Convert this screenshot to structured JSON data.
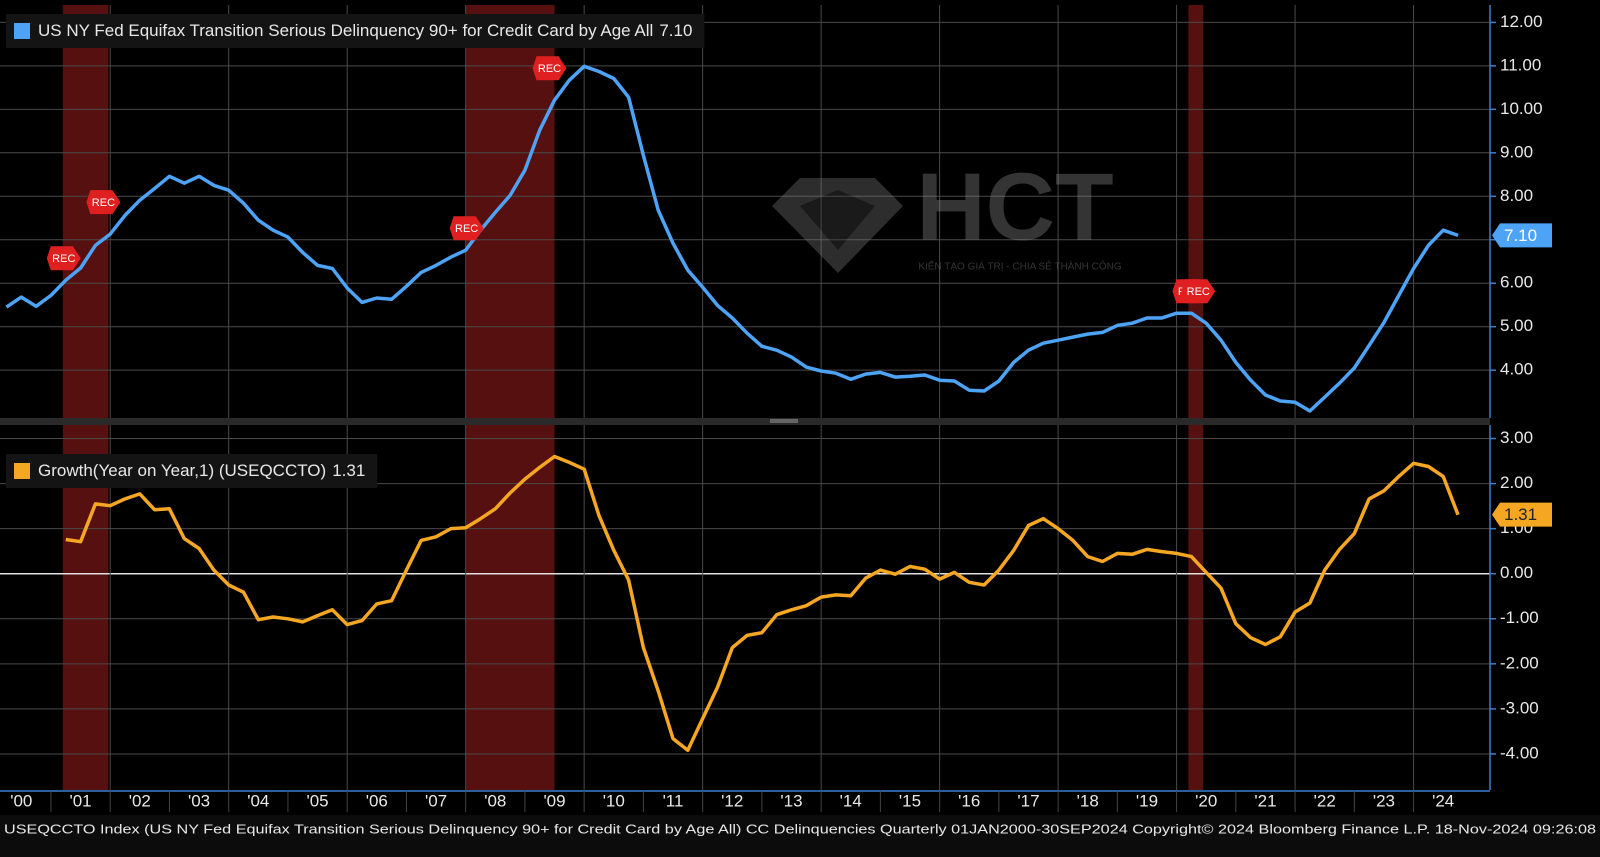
{
  "chart_data": [
    {
      "type": "line",
      "series": [
        {
          "name": "US NY Fed Equifax Transition Serious Delinquency 90+ for Credit Card by Age All",
          "last_value_label": "7.10",
          "color": "#4da3f5",
          "x": [
            2000.25,
            2000.5,
            2000.75,
            2001,
            2001.25,
            2001.5,
            2001.75,
            2002,
            2002.25,
            2002.5,
            2002.75,
            2003,
            2003.25,
            2003.5,
            2003.75,
            2004,
            2004.25,
            2004.5,
            2004.75,
            2005,
            2005.25,
            2005.5,
            2005.75,
            2006,
            2006.25,
            2006.5,
            2006.75,
            2007,
            2007.25,
            2007.5,
            2007.75,
            2008,
            2008.25,
            2008.5,
            2008.75,
            2009,
            2009.25,
            2009.5,
            2009.75,
            2010,
            2010.25,
            2010.5,
            2010.75,
            2011,
            2011.25,
            2011.5,
            2011.75,
            2012,
            2012.25,
            2012.5,
            2012.75,
            2013,
            2013.25,
            2013.5,
            2013.75,
            2014,
            2014.25,
            2014.5,
            2014.75,
            2015,
            2015.25,
            2015.5,
            2015.75,
            2016,
            2016.25,
            2016.5,
            2016.75,
            2017,
            2017.25,
            2017.5,
            2017.75,
            2018,
            2018.25,
            2018.5,
            2018.75,
            2019,
            2019.25,
            2019.5,
            2019.75,
            2020,
            2020.25,
            2020.5,
            2020.75,
            2021,
            2021.25,
            2021.5,
            2021.75,
            2022,
            2022.25,
            2022.5,
            2022.75,
            2023,
            2023.25,
            2023.5,
            2023.75,
            2024,
            2024.25,
            2024.5,
            2024.75
          ],
          "values": [
            5.45,
            5.68,
            5.47,
            5.72,
            6.07,
            6.35,
            6.87,
            7.13,
            7.56,
            7.91,
            8.18,
            8.46,
            8.3,
            8.46,
            8.25,
            8.14,
            7.84,
            7.45,
            7.22,
            7.06,
            6.71,
            6.41,
            6.34,
            5.89,
            5.56,
            5.66,
            5.63,
            5.93,
            6.25,
            6.41,
            6.6,
            6.76,
            7.22,
            7.63,
            8.02,
            8.6,
            9.52,
            10.21,
            10.67,
            10.99,
            10.87,
            10.71,
            10.28,
            8.94,
            7.68,
            6.92,
            6.3,
            5.91,
            5.49,
            5.2,
            4.85,
            4.55,
            4.46,
            4.3,
            4.07,
            3.98,
            3.93,
            3.79,
            3.91,
            3.95,
            3.84,
            3.86,
            3.89,
            3.77,
            3.75,
            3.54,
            3.52,
            3.75,
            4.18,
            4.46,
            4.62,
            4.69,
            4.76,
            4.83,
            4.87,
            5.03,
            5.08,
            5.2,
            5.2,
            5.31,
            5.31,
            5.08,
            4.69,
            4.18,
            3.77,
            3.43,
            3.29,
            3.26,
            3.06,
            3.38,
            3.7,
            4.05,
            4.57,
            5.1,
            5.72,
            6.34,
            6.87,
            7.22,
            7.1
          ]
        }
      ],
      "xlim": [
        2000.14,
        2025.29
      ],
      "ylim": [
        2.9,
        12.4
      ],
      "yticks": [
        {
          "value": 4,
          "label": "4.00"
        },
        {
          "value": 5,
          "label": "5.00"
        },
        {
          "value": 6,
          "label": "6.00"
        },
        {
          "value": 7,
          "label": "7.00"
        },
        {
          "value": 8,
          "label": "8.00"
        },
        {
          "value": 9,
          "label": "9.00"
        },
        {
          "value": 10,
          "label": "10.00"
        },
        {
          "value": 11,
          "label": "11.00"
        },
        {
          "value": 12,
          "label": "12.00"
        }
      ],
      "grid": true,
      "recessions": [
        [
          2001.2,
          2001.97
        ],
        [
          2008.0,
          2009.5
        ],
        [
          2020.2,
          2020.45
        ]
      ],
      "recession_label": "REC"
    },
    {
      "type": "line",
      "series": [
        {
          "name": "Growth(Year on Year,1) (USEQCCTO)",
          "last_value_label": "1.31",
          "color": "#f5a623",
          "x": [
            2001.25,
            2001.5,
            2001.75,
            2002,
            2002.25,
            2002.5,
            2002.75,
            2003,
            2003.25,
            2003.5,
            2003.75,
            2004,
            2004.25,
            2004.5,
            2004.75,
            2005,
            2005.25,
            2005.5,
            2005.75,
            2006,
            2006.25,
            2006.5,
            2006.75,
            2007,
            2007.25,
            2007.5,
            2007.75,
            2008,
            2008.25,
            2008.5,
            2008.75,
            2009,
            2009.25,
            2009.5,
            2009.75,
            2010,
            2010.25,
            2010.5,
            2010.75,
            2011,
            2011.25,
            2011.5,
            2011.75,
            2012,
            2012.25,
            2012.5,
            2012.75,
            2013,
            2013.25,
            2013.5,
            2013.75,
            2014,
            2014.25,
            2014.5,
            2014.75,
            2015,
            2015.25,
            2015.5,
            2015.75,
            2016,
            2016.25,
            2016.5,
            2016.75,
            2017,
            2017.25,
            2017.5,
            2017.75,
            2018,
            2018.25,
            2018.5,
            2018.75,
            2019,
            2019.25,
            2019.5,
            2019.75,
            2020,
            2020.25,
            2020.5,
            2020.75,
            2021,
            2021.25,
            2021.5,
            2021.75,
            2022,
            2022.25,
            2022.5,
            2022.75,
            2023,
            2023.25,
            2023.5,
            2023.75,
            2024,
            2024.25,
            2024.5,
            2024.75
          ],
          "values": [
            0.76,
            0.71,
            1.55,
            1.51,
            1.66,
            1.77,
            1.42,
            1.44,
            0.78,
            0.56,
            0.08,
            -0.25,
            -0.41,
            -1.02,
            -0.96,
            -1.0,
            -1.07,
            -0.93,
            -0.8,
            -1.13,
            -1.04,
            -0.67,
            -0.6,
            0.08,
            0.74,
            0.82,
            1.0,
            1.02,
            1.22,
            1.44,
            1.79,
            2.1,
            2.36,
            2.6,
            2.47,
            2.32,
            1.29,
            0.52,
            -0.14,
            -1.64,
            -2.6,
            -3.66,
            -3.92,
            -3.22,
            -2.52,
            -1.64,
            -1.37,
            -1.31,
            -0.91,
            -0.8,
            -0.71,
            -0.52,
            -0.47,
            -0.49,
            -0.1,
            0.08,
            -0.01,
            0.16,
            0.1,
            -0.12,
            0.03,
            -0.19,
            -0.25,
            0.08,
            0.52,
            1.07,
            1.22,
            1.0,
            0.74,
            0.38,
            0.27,
            0.45,
            0.43,
            0.54,
            0.49,
            0.45,
            0.38,
            0.03,
            -0.32,
            -1.11,
            -1.42,
            -1.57,
            -1.4,
            -0.85,
            -0.65,
            0.08,
            0.54,
            0.89,
            1.66,
            1.84,
            2.16,
            2.45,
            2.38,
            2.16,
            1.31
          ]
        }
      ],
      "xlim": [
        2000.14,
        2025.29
      ],
      "ylim": [
        -4.8,
        3.3
      ],
      "yticks": [
        {
          "value": -4,
          "label": "-4.00"
        },
        {
          "value": -3,
          "label": "-3.00"
        },
        {
          "value": -2,
          "label": "-2.00"
        },
        {
          "value": -1,
          "label": "-1.00"
        },
        {
          "value": 0,
          "label": "0.00"
        },
        {
          "value": 1,
          "label": "1.00"
        },
        {
          "value": 2,
          "label": "2.00"
        },
        {
          "value": 3,
          "label": "3.00"
        }
      ],
      "grid": true,
      "zero_line": true,
      "xticks": [
        {
          "value": 2000,
          "label": "'00"
        },
        {
          "value": 2001,
          "label": "'01"
        },
        {
          "value": 2002,
          "label": "'02"
        },
        {
          "value": 2003,
          "label": "'03"
        },
        {
          "value": 2004,
          "label": "'04"
        },
        {
          "value": 2005,
          "label": "'05"
        },
        {
          "value": 2006,
          "label": "'06"
        },
        {
          "value": 2007,
          "label": "'07"
        },
        {
          "value": 2008,
          "label": "'08"
        },
        {
          "value": 2009,
          "label": "'09"
        },
        {
          "value": 2010,
          "label": "'10"
        },
        {
          "value": 2011,
          "label": "'11"
        },
        {
          "value": 2012,
          "label": "'12"
        },
        {
          "value": 2013,
          "label": "'13"
        },
        {
          "value": 2014,
          "label": "'14"
        },
        {
          "value": 2015,
          "label": "'15"
        },
        {
          "value": 2016,
          "label": "'16"
        },
        {
          "value": 2017,
          "label": "'17"
        },
        {
          "value": 2018,
          "label": "'18"
        },
        {
          "value": 2019,
          "label": "'19"
        },
        {
          "value": 2020,
          "label": "'20"
        },
        {
          "value": 2021,
          "label": "'21"
        },
        {
          "value": 2022,
          "label": "'22"
        },
        {
          "value": 2023,
          "label": "'23"
        },
        {
          "value": 2024,
          "label": "'24"
        }
      ]
    }
  ],
  "watermark": {
    "title": "HCT",
    "subtitle": "KIẾN TẠO GIÁ TRỊ - CHIA SẺ THÀNH CÔNG"
  },
  "footer": "USEQCCTO Index (US NY Fed Equifax Transition Serious Delinquency 90+ for Credit Card by Age All) CC Delinquencies  Quarterly 01JAN2000-30SEP2024 Copyright© 2024 Bloomberg Finance L.P.  18-Nov-2024 09:26:08"
}
